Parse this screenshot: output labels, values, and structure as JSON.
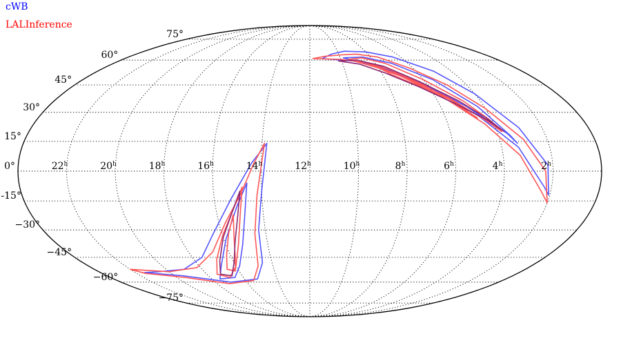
{
  "legend": {
    "items": [
      {
        "label": "cWB",
        "color": "#0000ff"
      },
      {
        "label": "LALInference",
        "color": "#ff0000"
      }
    ]
  },
  "map": {
    "projection": "mollweide",
    "grid": true,
    "ra_labels": [
      {
        "ra_hours": 22,
        "text": "22h"
      },
      {
        "ra_hours": 20,
        "text": "20h"
      },
      {
        "ra_hours": 18,
        "text": "18h"
      },
      {
        "ra_hours": 16,
        "text": "16h"
      },
      {
        "ra_hours": 14,
        "text": "14h"
      },
      {
        "ra_hours": 12,
        "text": "12h"
      },
      {
        "ra_hours": 10,
        "text": "10h"
      },
      {
        "ra_hours": 8,
        "text": "8h"
      },
      {
        "ra_hours": 6,
        "text": "6h"
      },
      {
        "ra_hours": 4,
        "text": "4h"
      },
      {
        "ra_hours": 2,
        "text": "2h"
      }
    ],
    "dec_labels": [
      {
        "dec": 75,
        "text": "75°"
      },
      {
        "dec": 60,
        "text": "60°"
      },
      {
        "dec": 45,
        "text": "45°"
      },
      {
        "dec": 30,
        "text": "30°"
      },
      {
        "dec": 15,
        "text": "15°"
      },
      {
        "dec": 0,
        "text": "0°"
      },
      {
        "dec": -15,
        "text": "-15°"
      },
      {
        "dec": -30,
        "text": "−30°"
      },
      {
        "dec": -45,
        "text": "−45°"
      },
      {
        "dec": -60,
        "text": "−60°"
      },
      {
        "dec": -75,
        "text": "−75°"
      }
    ],
    "regions": [
      {
        "name": "cWB-outer-north",
        "color": "#5555ff",
        "points": [
          [
            11.2,
            61
          ],
          [
            10.5,
            64
          ],
          [
            9.5,
            66
          ],
          [
            8,
            65.5
          ],
          [
            6.5,
            62
          ],
          [
            5,
            53
          ],
          [
            4,
            40
          ],
          [
            3,
            22
          ],
          [
            2.2,
            3
          ],
          [
            2.05,
            -12
          ],
          [
            2.3,
            -8
          ],
          [
            3.3,
            12
          ],
          [
            4.5,
            28
          ],
          [
            6,
            44
          ],
          [
            7.8,
            56
          ],
          [
            9.3,
            59.5
          ],
          [
            10.6,
            60.5
          ],
          [
            11.2,
            61
          ]
        ]
      },
      {
        "name": "cWB-inner-north",
        "color": "#5555ff",
        "points": [
          [
            9.8,
            61.5
          ],
          [
            8.5,
            62
          ],
          [
            7,
            58
          ],
          [
            5.5,
            48
          ],
          [
            4.3,
            33
          ],
          [
            3.5,
            18
          ],
          [
            3.3,
            14
          ],
          [
            3.6,
            19
          ],
          [
            4.8,
            33
          ],
          [
            6.2,
            46
          ],
          [
            7.8,
            55
          ],
          [
            9.2,
            59.5
          ],
          [
            9.8,
            61.5
          ]
        ]
      },
      {
        "name": "cWB-outer-south",
        "color": "#5555ff",
        "points": [
          [
            13.8,
            14
          ],
          [
            14.4,
            4
          ],
          [
            15.3,
            -14
          ],
          [
            16.4,
            -32
          ],
          [
            17.5,
            -45
          ],
          [
            19,
            -52
          ],
          [
            20.6,
            -53.5
          ],
          [
            21.5,
            -54
          ],
          [
            19.5,
            -56
          ],
          [
            17,
            -60
          ],
          [
            15.2,
            -58
          ],
          [
            14.5,
            -48
          ],
          [
            14.3,
            -30
          ],
          [
            14,
            -10
          ],
          [
            13.8,
            14
          ]
        ]
      },
      {
        "name": "cWB-inner-south",
        "color": "#5555ff",
        "points": [
          [
            14.6,
            -6
          ],
          [
            15.1,
            -18
          ],
          [
            15.9,
            -35
          ],
          [
            16.8,
            -50
          ],
          [
            17.5,
            -58
          ],
          [
            16.5,
            -57
          ],
          [
            15.8,
            -50
          ],
          [
            15.2,
            -38
          ],
          [
            14.8,
            -22
          ],
          [
            14.6,
            -6
          ]
        ]
      },
      {
        "name": "LAL-outer-north",
        "color": "#ff5555",
        "points": [
          [
            11.8,
            61
          ],
          [
            11,
            62.5
          ],
          [
            9.8,
            63.5
          ],
          [
            8.8,
            64
          ],
          [
            7.5,
            62
          ],
          [
            6.2,
            55
          ],
          [
            5,
            45
          ],
          [
            4,
            32
          ],
          [
            3,
            16
          ],
          [
            2.3,
            0
          ],
          [
            2,
            -16
          ],
          [
            2.4,
            -10
          ],
          [
            3.3,
            8
          ],
          [
            4.4,
            24
          ],
          [
            5.7,
            39
          ],
          [
            7.3,
            52
          ],
          [
            8.6,
            58.5
          ],
          [
            10,
            60.5
          ],
          [
            11.8,
            61
          ]
        ]
      },
      {
        "name": "LAL-middle-north",
        "color": "#ff5555",
        "points": [
          [
            9.5,
            60.5
          ],
          [
            8.6,
            61.5
          ],
          [
            7.4,
            58
          ],
          [
            6,
            48
          ],
          [
            4.8,
            36
          ],
          [
            4.1,
            26
          ],
          [
            3.8,
            20
          ],
          [
            4.3,
            26
          ],
          [
            5.4,
            38
          ],
          [
            6.7,
            48
          ],
          [
            8,
            55
          ],
          [
            9.5,
            60.5
          ]
        ]
      },
      {
        "name": "LAL-inner-north",
        "color": "#ff5555",
        "points": [
          [
            8.3,
            58
          ],
          [
            7.4,
            54
          ],
          [
            6.2,
            45
          ],
          [
            5.3,
            36
          ],
          [
            4.6,
            27
          ],
          [
            5.2,
            34
          ],
          [
            6.4,
            44
          ],
          [
            7.5,
            51
          ],
          [
            8.3,
            58
          ]
        ]
      },
      {
        "name": "LAL-outer-south",
        "color": "#ff5555",
        "points": [
          [
            13.9,
            14
          ],
          [
            14.3,
            4
          ],
          [
            14.9,
            -12
          ],
          [
            15.7,
            -26
          ],
          [
            16.8,
            -42
          ],
          [
            18.2,
            -51
          ],
          [
            20,
            -53.5
          ],
          [
            22,
            -52
          ],
          [
            21.5,
            -54.5
          ],
          [
            19.5,
            -57
          ],
          [
            17.2,
            -61
          ],
          [
            15.5,
            -59
          ],
          [
            14.8,
            -50
          ],
          [
            14.5,
            -32
          ],
          [
            14.2,
            -12
          ],
          [
            13.9,
            14
          ]
        ]
      },
      {
        "name": "LAL-middle-south",
        "color": "#ff5555",
        "points": [
          [
            14.8,
            -8
          ],
          [
            15.2,
            -18
          ],
          [
            16,
            -33
          ],
          [
            16.8,
            -46
          ],
          [
            17.4,
            -55
          ],
          [
            16.8,
            -57
          ],
          [
            16,
            -50
          ],
          [
            15.4,
            -38
          ],
          [
            15,
            -22
          ],
          [
            14.8,
            -8
          ]
        ]
      },
      {
        "name": "LAL-inner-south",
        "color": "#ff5555",
        "points": [
          [
            15.3,
            -22
          ],
          [
            15.7,
            -32
          ],
          [
            16.2,
            -44
          ],
          [
            16.6,
            -52
          ],
          [
            16.2,
            -53
          ],
          [
            15.8,
            -45
          ],
          [
            15.5,
            -34
          ],
          [
            15.3,
            -22
          ]
        ]
      },
      {
        "name": "overlap-north",
        "color": "#8b2570",
        "points": [
          [
            10.2,
            59.5
          ],
          [
            9,
            60
          ],
          [
            7.6,
            56
          ],
          [
            6.3,
            47
          ],
          [
            5,
            36
          ],
          [
            4.2,
            27
          ],
          [
            3.7,
            20
          ],
          [
            4.2,
            26
          ],
          [
            5.3,
            35
          ],
          [
            6.5,
            44
          ],
          [
            7.8,
            52
          ],
          [
            9,
            57.5
          ],
          [
            10.2,
            59.5
          ]
        ]
      },
      {
        "name": "overlap-south",
        "color": "#8b2570",
        "points": [
          [
            14.9,
            -10
          ],
          [
            15.3,
            -20
          ],
          [
            16,
            -34
          ],
          [
            16.7,
            -47
          ],
          [
            17.2,
            -55
          ],
          [
            16.6,
            -56
          ],
          [
            16,
            -48
          ],
          [
            15.5,
            -36
          ],
          [
            15.1,
            -22
          ],
          [
            14.9,
            -10
          ]
        ]
      }
    ]
  }
}
